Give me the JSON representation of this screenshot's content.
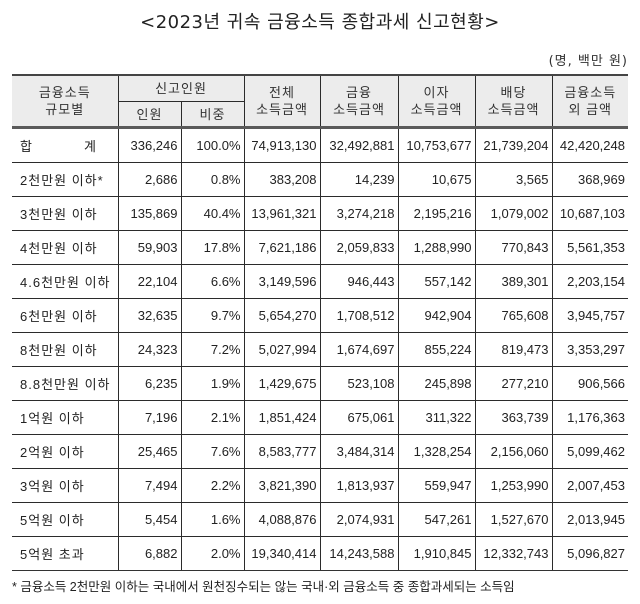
{
  "title": "<2023년 귀속 금융소득 종합과세 신고현황>",
  "unit": "(명, 백만 원)",
  "header": {
    "group_label": "금융소득\n규모별",
    "col_group_label": "금융소득",
    "col_group_label2": "규모별",
    "report_people": "신고인원",
    "people": "인원",
    "share": "비중",
    "total_income_1": "전체",
    "total_income_2": "소득금액",
    "financial_income_1": "금융",
    "financial_income_2": "소득금액",
    "interest_income_1": "이자",
    "interest_income_2": "소득금액",
    "dividend_income_1": "배당",
    "dividend_income_2": "소득금액",
    "non_financial_1": "금융소득",
    "non_financial_2": "외 금액"
  },
  "rows": [
    {
      "label_a": "합",
      "label_b": "계",
      "people": "336,246",
      "share": "100.0%",
      "total": "74,913,130",
      "financial": "32,492,881",
      "interest": "10,753,677",
      "dividend": "21,739,204",
      "non_financial": "42,420,248"
    },
    {
      "label": "2천만원 이하*",
      "people": "2,686",
      "share": "0.8%",
      "total": "383,208",
      "financial": "14,239",
      "interest": "10,675",
      "dividend": "3,565",
      "non_financial": "368,969"
    },
    {
      "label": "3천만원 이하",
      "people": "135,869",
      "share": "40.4%",
      "total": "13,961,321",
      "financial": "3,274,218",
      "interest": "2,195,216",
      "dividend": "1,079,002",
      "non_financial": "10,687,103"
    },
    {
      "label": "4천만원 이하",
      "people": "59,903",
      "share": "17.8%",
      "total": "7,621,186",
      "financial": "2,059,833",
      "interest": "1,288,990",
      "dividend": "770,843",
      "non_financial": "5,561,353"
    },
    {
      "label": "4.6천만원 이하",
      "people": "22,104",
      "share": "6.6%",
      "total": "3,149,596",
      "financial": "946,443",
      "interest": "557,142",
      "dividend": "389,301",
      "non_financial": "2,203,154"
    },
    {
      "label": "6천만원 이하",
      "people": "32,635",
      "share": "9.7%",
      "total": "5,654,270",
      "financial": "1,708,512",
      "interest": "942,904",
      "dividend": "765,608",
      "non_financial": "3,945,757"
    },
    {
      "label": "8천만원 이하",
      "people": "24,323",
      "share": "7.2%",
      "total": "5,027,994",
      "financial": "1,674,697",
      "interest": "855,224",
      "dividend": "819,473",
      "non_financial": "3,353,297"
    },
    {
      "label": "8.8천만원 이하",
      "people": "6,235",
      "share": "1.9%",
      "total": "1,429,675",
      "financial": "523,108",
      "interest": "245,898",
      "dividend": "277,210",
      "non_financial": "906,566"
    },
    {
      "label": "1억원 이하",
      "people": "7,196",
      "share": "2.1%",
      "total": "1,851,424",
      "financial": "675,061",
      "interest": "311,322",
      "dividend": "363,739",
      "non_financial": "1,176,363"
    },
    {
      "label": "2억원 이하",
      "people": "25,465",
      "share": "7.6%",
      "total": "8,583,777",
      "financial": "3,484,314",
      "interest": "1,328,254",
      "dividend": "2,156,060",
      "non_financial": "5,099,462"
    },
    {
      "label": "3억원 이하",
      "people": "7,494",
      "share": "2.2%",
      "total": "3,821,390",
      "financial": "1,813,937",
      "interest": "559,947",
      "dividend": "1,253,990",
      "non_financial": "2,007,453"
    },
    {
      "label": "5억원 이하",
      "people": "5,454",
      "share": "1.6%",
      "total": "4,088,876",
      "financial": "2,074,931",
      "interest": "547,261",
      "dividend": "1,527,670",
      "non_financial": "2,013,945"
    },
    {
      "label": "5억원 초과",
      "people": "6,882",
      "share": "2.0%",
      "total": "19,340,414",
      "financial": "14,243,588",
      "interest": "1,910,845",
      "dividend": "12,332,743",
      "non_financial": "5,096,827"
    }
  ],
  "footnote": "* 금융소득 2천만원 이하는 국내에서 원천징수되는 않는 국내·외 금융소득 중 종합과세되는 소득임"
}
